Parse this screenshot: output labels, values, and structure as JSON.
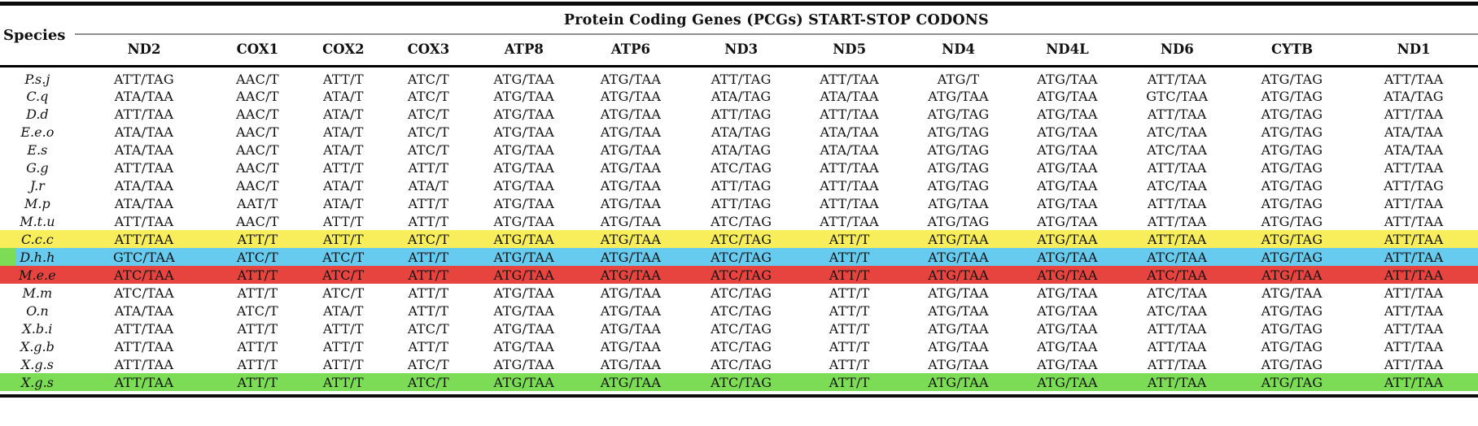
{
  "title": "Protein Coding Genes (PCGs) START-STOP CODONS",
  "species_header": "Species",
  "columns": [
    "ND2",
    "COX1",
    "COX2",
    "COX3",
    "ATP8",
    "ATP6",
    "ND3",
    "ND5",
    "ND4",
    "ND4L",
    "ND6",
    "CYTB",
    "ND1"
  ],
  "highlight_colors": {
    "yellow": "#F8ED5B",
    "blue": "#67CAEF",
    "red": "#E74440",
    "green": "#7CDC55"
  },
  "rows": [
    {
      "species": "P.s.j",
      "highlight": null,
      "values": [
        "ATT/TAG",
        "AAC/T",
        "ATT/T",
        "ATC/T",
        "ATG/TAA",
        "ATG/TAA",
        "ATT/TAG",
        "ATT/TAA",
        "ATG/T",
        "ATG/TAA",
        "ATT/TAA",
        "ATG/TAG",
        "ATT/TAA"
      ]
    },
    {
      "species": "C.q",
      "highlight": null,
      "values": [
        "ATA/TAA",
        "AAC/T",
        "ATA/T",
        "ATC/T",
        "ATG/TAA",
        "ATG/TAA",
        "ATA/TAG",
        "ATA/TAA",
        "ATG/TAA",
        "ATG/TAA",
        "GTC/TAA",
        "ATG/TAG",
        "ATA/TAG"
      ]
    },
    {
      "species": "D.d",
      "highlight": null,
      "values": [
        "ATT/TAA",
        "AAC/T",
        "ATA/T",
        "ATC/T",
        "ATG/TAA",
        "ATG/TAA",
        "ATT/TAG",
        "ATT/TAA",
        "ATG/TAG",
        "ATG/TAA",
        "ATT/TAA",
        "ATG/TAG",
        "ATT/TAA"
      ]
    },
    {
      "species": "E.e.o",
      "highlight": null,
      "values": [
        "ATA/TAA",
        "AAC/T",
        "ATA/T",
        "ATC/T",
        "ATG/TAA",
        "ATG/TAA",
        "ATA/TAG",
        "ATA/TAA",
        "ATG/TAG",
        "ATG/TAA",
        "ATC/TAA",
        "ATG/TAG",
        "ATA/TAA"
      ]
    },
    {
      "species": "E.s",
      "highlight": null,
      "values": [
        "ATA/TAA",
        "AAC/T",
        "ATA/T",
        "ATC/T",
        "ATG/TAA",
        "ATG/TAA",
        "ATA/TAG",
        "ATA/TAA",
        "ATG/TAG",
        "ATG/TAA",
        "ATC/TAA",
        "ATG/TAG",
        "ATA/TAA"
      ]
    },
    {
      "species": "G.g",
      "highlight": null,
      "values": [
        "ATT/TAA",
        "AAC/T",
        "ATT/T",
        "ATT/T",
        "ATG/TAA",
        "ATG/TAA",
        "ATC/TAG",
        "ATT/TAA",
        "ATG/TAG",
        "ATG/TAA",
        "ATT/TAA",
        "ATG/TAG",
        "ATT/TAA"
      ]
    },
    {
      "species": "J.r",
      "highlight": null,
      "values": [
        "ATA/TAA",
        "AAC/T",
        "ATA/T",
        "ATA/T",
        "ATG/TAA",
        "ATG/TAA",
        "ATT/TAG",
        "ATT/TAA",
        "ATG/TAG",
        "ATG/TAA",
        "ATC/TAA",
        "ATG/TAG",
        "ATT/TAG"
      ]
    },
    {
      "species": "M.p",
      "highlight": null,
      "values": [
        "ATA/TAA",
        "AAT/T",
        "ATA/T",
        "ATT/T",
        "ATG/TAA",
        "ATG/TAA",
        "ATT/TAG",
        "ATT/TAA",
        "ATG/TAA",
        "ATG/TAA",
        "ATT/TAA",
        "ATG/TAG",
        "ATT/TAA"
      ]
    },
    {
      "species": "M.t.u",
      "highlight": null,
      "values": [
        "ATT/TAA",
        "AAC/T",
        "ATT/T",
        "ATT/T",
        "ATG/TAA",
        "ATG/TAA",
        "ATC/TAG",
        "ATT/TAA",
        "ATG/TAG",
        "ATG/TAA",
        "ATT/TAA",
        "ATG/TAG",
        "ATT/TAA"
      ]
    },
    {
      "species": "C.c.c",
      "highlight": "yellow",
      "values": [
        "ATT/TAA",
        "ATT/T",
        "ATT/T",
        "ATC/T",
        "ATG/TAA",
        "ATG/TAA",
        "ATC/TAG",
        "ATT/T",
        "ATG/TAA",
        "ATG/TAA",
        "ATT/TAA",
        "ATG/TAG",
        "ATT/TAA"
      ]
    },
    {
      "species": "D.h.h",
      "highlight": "blue",
      "left_accent": "green",
      "values": [
        "GTC/TAA",
        "ATC/T",
        "ATC/T",
        "ATT/T",
        "ATG/TAA",
        "ATG/TAA",
        "ATC/TAG",
        "ATT/T",
        "ATG/TAA",
        "ATG/TAA",
        "ATC/TAA",
        "ATG/TAG",
        "ATT/TAA"
      ]
    },
    {
      "species": "M.e.e",
      "highlight": "red",
      "values": [
        "ATC/TAA",
        "ATT/T",
        "ATC/T",
        "ATT/T",
        "ATG/TAA",
        "ATG/TAA",
        "ATC/TAG",
        "ATT/T",
        "ATG/TAA",
        "ATG/TAA",
        "ATC/TAA",
        "ATG/TAA",
        "ATT/TAA"
      ]
    },
    {
      "species": "M.m",
      "highlight": null,
      "values": [
        "ATC/TAA",
        "ATT/T",
        "ATC/T",
        "ATT/T",
        "ATG/TAA",
        "ATG/TAA",
        "ATC/TAG",
        "ATT/T",
        "ATG/TAA",
        "ATG/TAA",
        "ATC/TAA",
        "ATG/TAA",
        "ATT/TAA"
      ]
    },
    {
      "species": "O.n",
      "highlight": null,
      "values": [
        "ATA/TAA",
        "ATC/T",
        "ATA/T",
        "ATT/T",
        "ATG/TAA",
        "ATG/TAA",
        "ATC/TAG",
        "ATT/T",
        "ATG/TAA",
        "ATG/TAA",
        "ATC/TAA",
        "ATG/TAG",
        "ATT/TAA"
      ]
    },
    {
      "species": "X.b.i",
      "highlight": null,
      "values": [
        "ATT/TAA",
        "ATT/T",
        "ATT/T",
        "ATC/T",
        "ATG/TAA",
        "ATG/TAA",
        "ATC/TAG",
        "ATT/T",
        "ATG/TAA",
        "ATG/TAA",
        "ATT/TAA",
        "ATG/TAG",
        "ATT/TAA"
      ]
    },
    {
      "species": "X.g.b",
      "highlight": null,
      "values": [
        "ATT/TAA",
        "ATT/T",
        "ATT/T",
        "ATT/T",
        "ATG/TAA",
        "ATG/TAA",
        "ATC/TAG",
        "ATT/T",
        "ATG/TAA",
        "ATG/TAA",
        "ATT/TAA",
        "ATG/TAG",
        "ATT/TAA"
      ]
    },
    {
      "species": "X.g.s",
      "highlight": null,
      "values": [
        "ATT/TAA",
        "ATT/T",
        "ATT/T",
        "ATC/T",
        "ATG/TAA",
        "ATG/TAA",
        "ATC/TAG",
        "ATT/T",
        "ATG/TAA",
        "ATG/TAA",
        "ATT/TAA",
        "ATG/TAG",
        "ATT/TAA"
      ]
    },
    {
      "species": "X.g.s",
      "highlight": "green",
      "values": [
        "ATT/TAA",
        "ATT/T",
        "ATT/T",
        "ATC/T",
        "ATG/TAA",
        "ATG/TAA",
        "ATC/TAG",
        "ATT/T",
        "ATG/TAA",
        "ATG/TAA",
        "ATT/TAA",
        "ATG/TAG",
        "ATT/TAA"
      ]
    }
  ]
}
